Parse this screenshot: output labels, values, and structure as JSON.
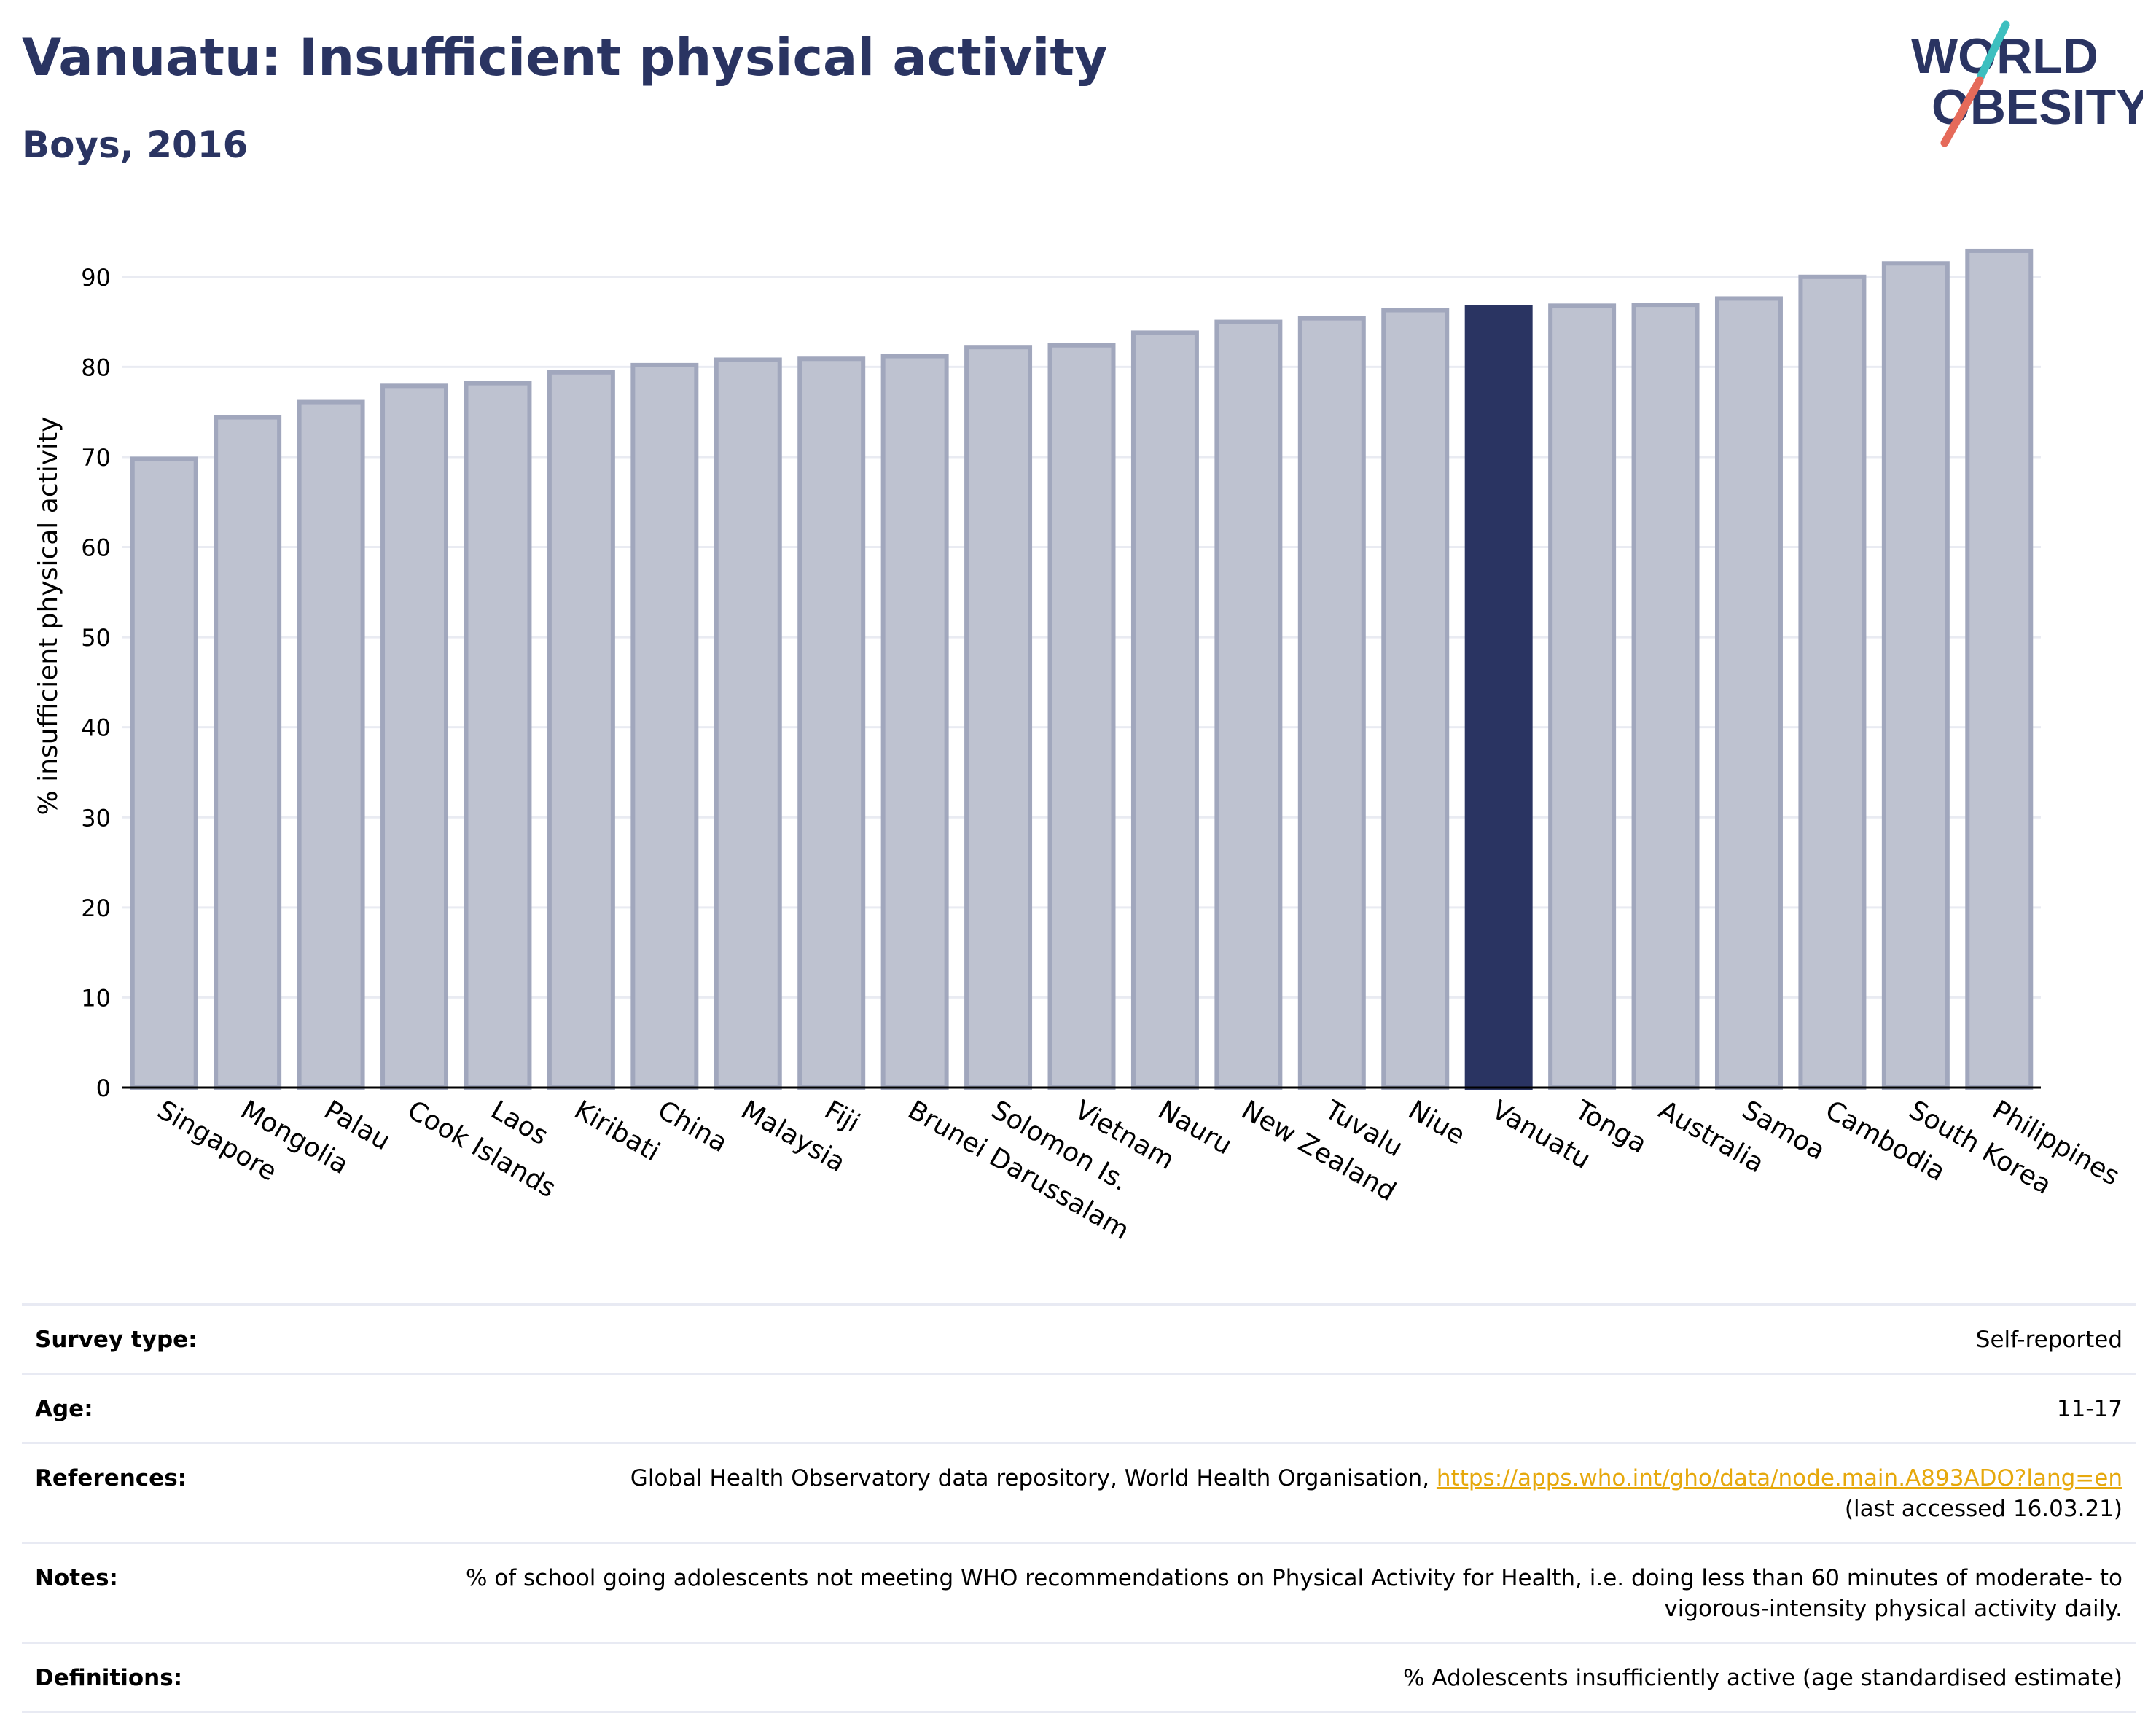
{
  "header": {
    "title": "Vanuatu: Insufficient physical activity",
    "subtitle": "Boys, 2016"
  },
  "logo": {
    "line1": "WORLD",
    "line2": "OBESITY",
    "accent_colors": [
      "#3dbfbf",
      "#e56a5a"
    ],
    "text_color": "#2a3462"
  },
  "chart_data": {
    "type": "bar",
    "title": "Vanuatu: Insufficient physical activity",
    "subtitle": "Boys, 2016",
    "xlabel": "",
    "ylabel": "% insufficient physical activity",
    "ylim": [
      0,
      95
    ],
    "yticks": [
      0,
      10,
      20,
      30,
      40,
      50,
      60,
      70,
      80,
      90
    ],
    "grid": true,
    "highlight": "Vanuatu",
    "colors": {
      "bar": "#bec2d0",
      "bar_edge": "#a1a7bd",
      "highlight": "#2a3462"
    },
    "categories": [
      "Singapore",
      "Mongolia",
      "Palau",
      "Cook Islands",
      "Laos",
      "Kiribati",
      "China",
      "Malaysia",
      "Fiji",
      "Brunei Darussalam",
      "Solomon Is.",
      "Vietnam",
      "Nauru",
      "New Zealand",
      "Tuvalu",
      "Niue",
      "Vanuatu",
      "Tonga",
      "Australia",
      "Samoa",
      "Cambodia",
      "South Korea",
      "Philippines"
    ],
    "values": [
      69.8,
      74.4,
      76.1,
      77.9,
      78.2,
      79.4,
      80.2,
      80.8,
      80.9,
      81.2,
      82.2,
      82.4,
      83.8,
      85.0,
      85.4,
      86.3,
      86.6,
      86.8,
      86.9,
      87.6,
      90.0,
      91.5,
      92.9
    ]
  },
  "meta": [
    {
      "label": "Survey type:",
      "value": "Self-reported"
    },
    {
      "label": "Age:",
      "value": "11-17"
    },
    {
      "label": "References:",
      "value": "Global Health Observatory data repository, World Health Organisation, ",
      "link": "https://apps.who.int/gho/data/node.main.A893ADO?lang=en",
      "value2": "(last accessed 16.03.21)"
    },
    {
      "label": "Notes:",
      "value": "% of school going adolescents not meeting WHO recommendations on Physical Activity for Health, i.e. doing less than 60 minutes of moderate- to vigorous-intensity physical activity daily."
    },
    {
      "label": "Definitions:",
      "value": "% Adolescents insufficiently active (age standardised estimate)"
    }
  ]
}
